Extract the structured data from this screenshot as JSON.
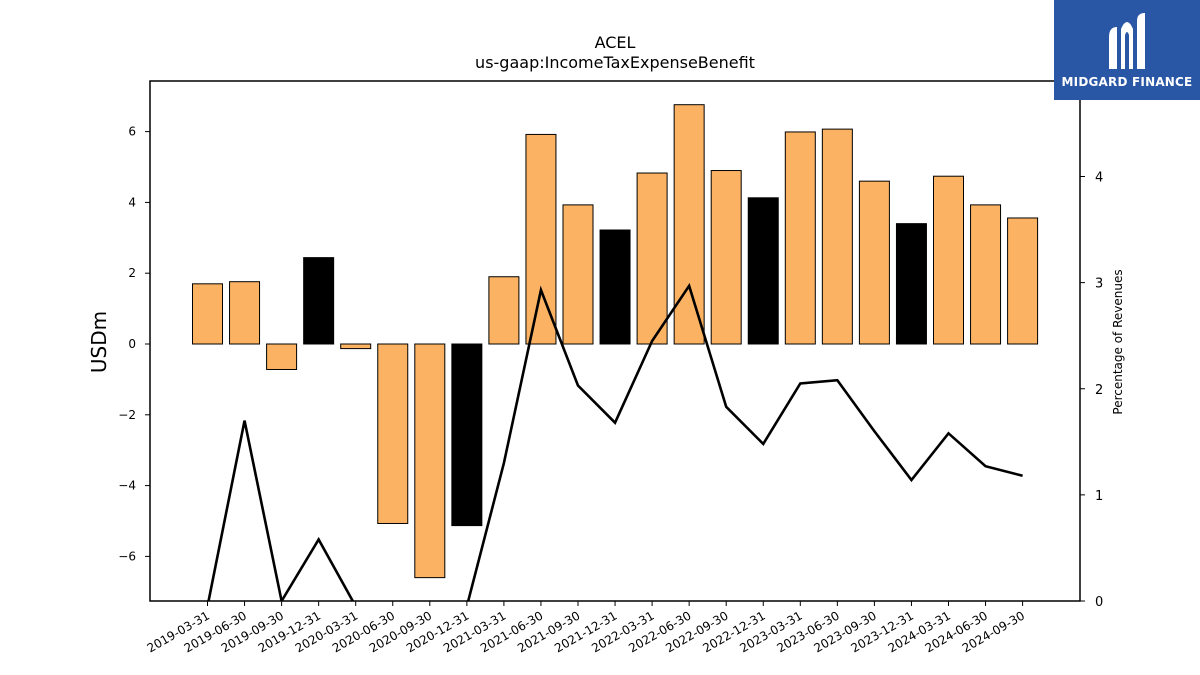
{
  "chart_data": {
    "type": "bar",
    "title": "ACEL",
    "subtitle": "us-gaap:IncomeTaxExpenseBenefit",
    "ylabel": "USDm",
    "y2label": "Percentage of Revenues",
    "ylim": [
      -7.2,
      7.4
    ],
    "y2lim": [
      0,
      4.9
    ],
    "yticks": [
      -6,
      -4,
      -2,
      0,
      2,
      4,
      6
    ],
    "y2ticks": [
      0,
      1,
      2,
      3,
      4
    ],
    "bar_colors": {
      "quarter": "#fbb363",
      "year_end": "#000000"
    },
    "categories": [
      "2019-03-31",
      "2019-06-30",
      "2019-09-30",
      "2019-12-31",
      "2020-03-31",
      "2020-06-30",
      "2020-09-30",
      "2020-12-31",
      "2021-03-31",
      "2021-06-30",
      "2021-09-30",
      "2021-12-31",
      "2022-03-31",
      "2022-06-30",
      "2022-09-30",
      "2022-12-31",
      "2023-03-31",
      "2023-06-30",
      "2023-09-30",
      "2023-12-31",
      "2024-03-31",
      "2024-06-30",
      "2024-09-30"
    ],
    "series": [
      {
        "type": "bar",
        "axis": "left",
        "values": [
          1.7,
          1.76,
          -0.72,
          2.44,
          -0.13,
          -5.07,
          -6.6,
          -5.13,
          1.9,
          5.92,
          3.93,
          3.22,
          4.83,
          6.76,
          4.9,
          4.13,
          5.99,
          6.07,
          4.6,
          3.4,
          4.74,
          3.93,
          3.56
        ]
      },
      {
        "type": "line",
        "axis": "right",
        "values": [
          -0.05,
          1.7,
          0.0,
          0.58,
          -0.05,
          null,
          null,
          -0.05,
          1.3,
          2.93,
          2.03,
          1.68,
          2.45,
          2.97,
          1.83,
          1.48,
          2.05,
          2.08,
          1.6,
          1.14,
          1.58,
          1.27,
          1.18
        ]
      }
    ]
  },
  "logo": {
    "text": "MIDGARD FINANCE"
  }
}
